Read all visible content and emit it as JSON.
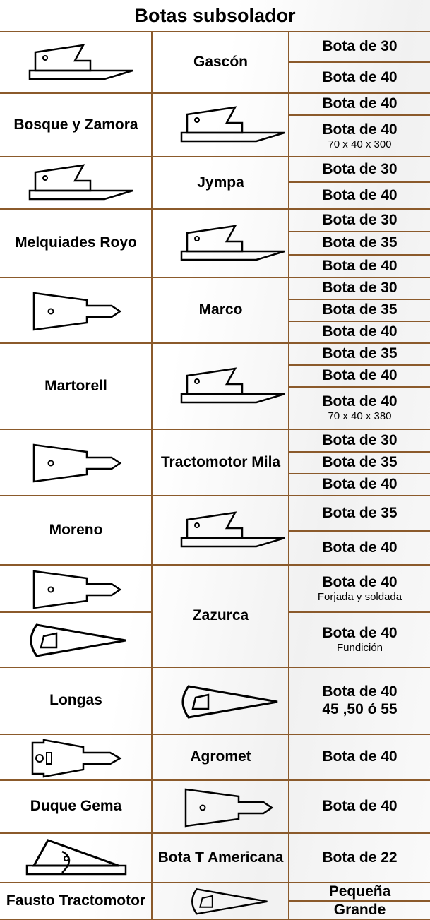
{
  "title": "Botas subsolador",
  "rows": [
    {
      "brand": "Gascón",
      "products": [
        {
          "name": "Bota de 30"
        },
        {
          "name": "Bota de 40"
        }
      ]
    },
    {
      "brand": "Bosque y Zamora",
      "products": [
        {
          "name": "Bota de 40"
        },
        {
          "name": "Bota de 40",
          "note": "70 x 40 x 300"
        }
      ]
    },
    {
      "brand": "Jympa",
      "products": [
        {
          "name": "Bota de 30"
        },
        {
          "name": "Bota de 40"
        }
      ]
    },
    {
      "brand": "Melquiades Royo",
      "products": [
        {
          "name": "Bota de 30"
        },
        {
          "name": "Bota de 35"
        },
        {
          "name": "Bota de 40"
        }
      ]
    },
    {
      "brand": "Marco",
      "products": [
        {
          "name": "Bota de 30"
        },
        {
          "name": "Bota de 35"
        },
        {
          "name": "Bota de 40"
        }
      ]
    },
    {
      "brand": "Martorell",
      "products": [
        {
          "name": "Bota de 35"
        },
        {
          "name": "Bota de 40"
        },
        {
          "name": "Bota de 40",
          "note": "70 x 40 x 380"
        }
      ]
    },
    {
      "brand": "Tractomotor Mila",
      "products": [
        {
          "name": "Bota de 30"
        },
        {
          "name": "Bota de 35"
        },
        {
          "name": "Bota de 40"
        }
      ]
    },
    {
      "brand": "Moreno",
      "products": [
        {
          "name": "Bota de 35"
        },
        {
          "name": "Bota de 40"
        }
      ]
    },
    {
      "brand": "Zazurca",
      "products": [
        {
          "name": "Bota de 40",
          "note": "Forjada y soldada"
        },
        {
          "name": "Bota de 40",
          "note": "Fundición"
        }
      ]
    },
    {
      "brand": "Longas",
      "products": [
        {
          "name": "Bota de 40",
          "note": "45 ,50 ó 55"
        }
      ]
    },
    {
      "brand": "Agromet",
      "products": [
        {
          "name": "Bota de 40"
        }
      ]
    },
    {
      "brand": "Duque Gema",
      "products": [
        {
          "name": "Bota de 40"
        }
      ]
    },
    {
      "brand": "Bota T Americana",
      "products": [
        {
          "name": "Bota de 22"
        }
      ]
    },
    {
      "brand": "Fausto Tractomotor",
      "products": [
        {
          "name": "Pequeña"
        },
        {
          "name": "Grande"
        }
      ]
    }
  ]
}
